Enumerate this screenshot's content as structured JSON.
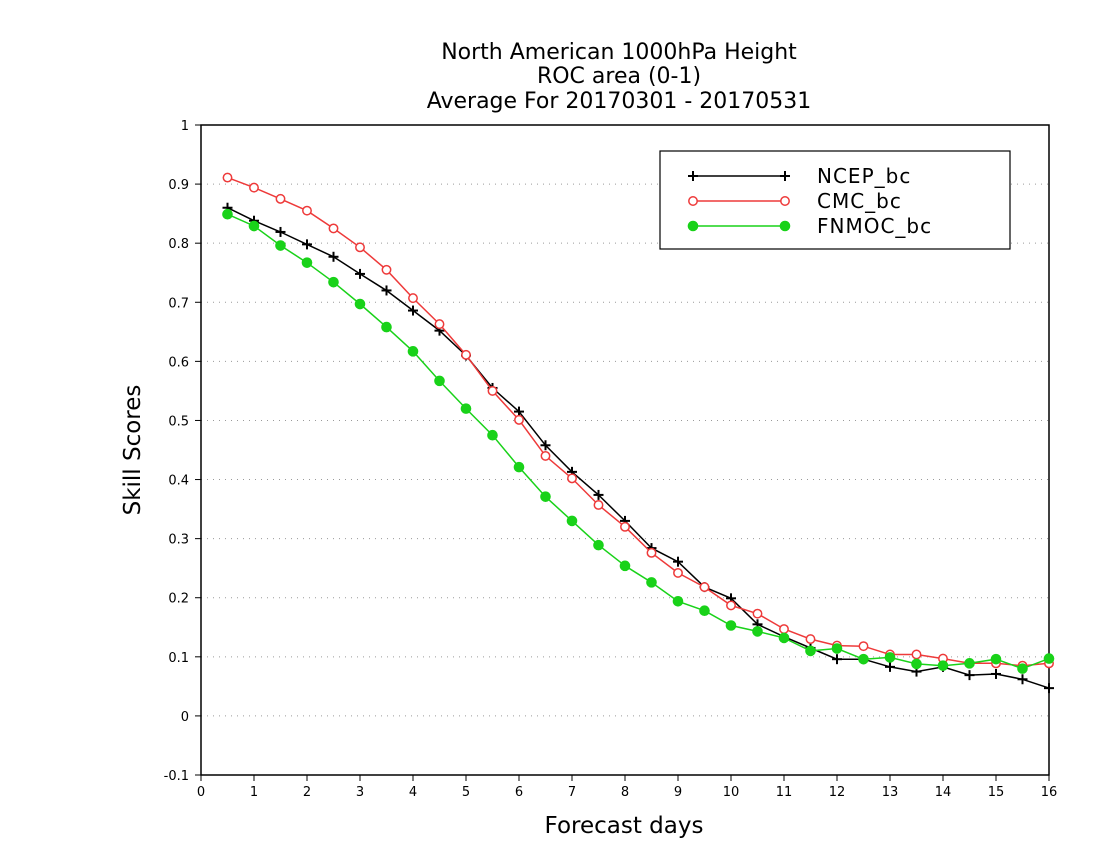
{
  "chart_data": {
    "type": "line",
    "title_lines": [
      "North American 1000hPa Height",
      "ROC area (0-1)",
      "Average For 20170301 - 20170531"
    ],
    "xlabel": "Forecast days",
    "ylabel": "Skill Scores",
    "xlim": [
      0,
      16
    ],
    "ylim": [
      -0.1,
      1
    ],
    "x_ticks": [
      "0",
      "1",
      "2",
      "3",
      "4",
      "5",
      "6",
      "7",
      "8",
      "9",
      "10",
      "11",
      "12",
      "13",
      "14",
      "15",
      "16"
    ],
    "y_ticks": [
      "1",
      "0.9",
      "0.8",
      "0.7",
      "0.6",
      "0.5",
      "0.4",
      "0.3",
      "0.2",
      "0.1",
      "0",
      "-0.1"
    ],
    "grid": "dotted horizontal",
    "legend_position": "top-right",
    "x": [
      0.5,
      1,
      1.5,
      2,
      2.5,
      3,
      3.5,
      4,
      4.5,
      5,
      5.5,
      6,
      6.5,
      7,
      7.5,
      8,
      8.5,
      9,
      9.5,
      10,
      10.5,
      11,
      11.5,
      12,
      12.5,
      13,
      13.5,
      14,
      14.5,
      15,
      15.5,
      16
    ],
    "series": [
      {
        "name": "NCEP_bc",
        "color": "#000000",
        "marker": "plus",
        "values": [
          0.86,
          0.838,
          0.819,
          0.798,
          0.777,
          0.748,
          0.72,
          0.686,
          0.652,
          0.61,
          0.555,
          0.515,
          0.458,
          0.413,
          0.374,
          0.33,
          0.284,
          0.261,
          0.218,
          0.199,
          0.155,
          0.134,
          0.115,
          0.096,
          0.096,
          0.083,
          0.075,
          0.083,
          0.069,
          0.071,
          0.062,
          0.047
        ]
      },
      {
        "name": "CMC_bc",
        "color": "#ee3a3a",
        "marker": "open-circle",
        "values": [
          0.911,
          0.894,
          0.875,
          0.855,
          0.825,
          0.793,
          0.755,
          0.707,
          0.663,
          0.611,
          0.55,
          0.501,
          0.44,
          0.402,
          0.357,
          0.32,
          0.276,
          0.242,
          0.218,
          0.187,
          0.173,
          0.147,
          0.13,
          0.119,
          0.118,
          0.104,
          0.104,
          0.097,
          0.089,
          0.089,
          0.085,
          0.089
        ]
      },
      {
        "name": "FNMOC_bc",
        "color": "#19d219",
        "marker": "filled-circle",
        "values": [
          0.849,
          0.829,
          0.796,
          0.767,
          0.734,
          0.697,
          0.658,
          0.617,
          0.567,
          0.52,
          0.475,
          0.421,
          0.371,
          0.33,
          0.289,
          0.254,
          0.226,
          0.194,
          0.178,
          0.153,
          0.143,
          0.132,
          0.11,
          0.114,
          0.096,
          0.099,
          0.088,
          0.085,
          0.089,
          0.096,
          0.08,
          0.097
        ]
      }
    ]
  }
}
